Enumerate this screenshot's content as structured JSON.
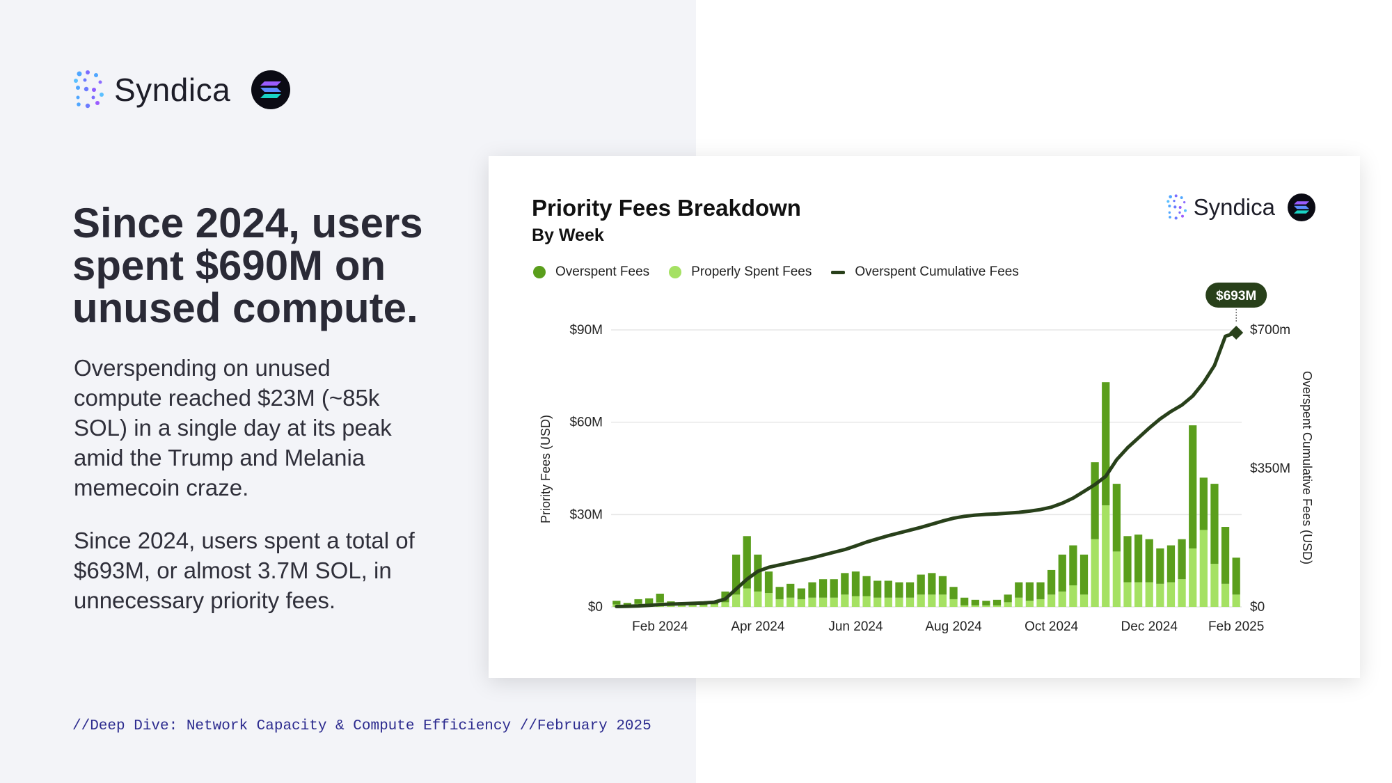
{
  "brand": {
    "name": "Syndica"
  },
  "headline": "Since 2024, users spent $690M on unused compute.",
  "paragraph1": "Overspending on unused compute reached $23M (~85k SOL) in a single day at its peak amid the Trump and Melania memecoin craze.",
  "paragraph2": "Since 2024, users spent a total of $693M, or almost 3.7M SOL, in unnecessary priority fees.",
  "footer": "//Deep Dive: Network Capacity & Compute Efficiency //February 2025",
  "colors": {
    "overspent": "#5a9e1c",
    "properly_spent": "#a5e163",
    "cumulative": "#28401a",
    "background": "#f3f4f8"
  },
  "chart_data": {
    "type": "bar",
    "title": "Priority Fees Breakdown",
    "subtitle": "By Week",
    "legend": [
      "Overspent Fees",
      "Properly Spent Fees",
      "Overspent Cumulative Fees"
    ],
    "legend_position": "top-left",
    "ylabel": "Priority Fees (USD)",
    "y2label": "Overspent Cumulative Fees (USD)",
    "ylim": [
      0,
      90
    ],
    "y2lim": [
      0,
      700
    ],
    "yticks": [
      "$0",
      "$30M",
      "$60M",
      "$90M"
    ],
    "y2ticks": [
      "$0",
      "$350M",
      "$700m"
    ],
    "xticks": [
      "Feb 2024",
      "Apr 2024",
      "Jun 2024",
      "Aug 2024",
      "Oct 2024",
      "Dec 2024",
      "Feb 2025"
    ],
    "grid": true,
    "annotation": {
      "label": "$693M"
    },
    "series": [
      {
        "name": "Overspent Fees",
        "values": [
          1.2,
          0.8,
          1.5,
          1.8,
          2.8,
          1.2,
          1,
          0.8,
          0.9,
          1.2,
          3.5,
          13,
          17,
          12,
          7,
          4,
          4.5,
          3.5,
          5,
          6,
          6,
          7,
          8,
          6.5,
          5.5,
          5.5,
          5,
          5,
          6.5,
          7,
          6,
          4,
          2.5,
          1.8,
          1.5,
          1.8,
          2.5,
          5,
          6,
          5.5,
          8,
          12,
          13,
          13,
          25,
          40,
          22,
          15,
          15.5,
          14,
          11.5,
          12,
          13,
          40,
          17,
          26,
          18.5,
          12
        ]
      },
      {
        "name": "Properly Spent Fees",
        "values": [
          0.8,
          0.5,
          1,
          1,
          1.5,
          0.6,
          0.5,
          0.5,
          0.5,
          0.8,
          1.5,
          4,
          6,
          5,
          4.5,
          2.5,
          3,
          2.5,
          3,
          3,
          3,
          4,
          3.5,
          3.5,
          3,
          3,
          3,
          3,
          4,
          4,
          4,
          2.5,
          0.5,
          0.5,
          0.5,
          0.5,
          1.5,
          3,
          2,
          2.5,
          4,
          5,
          7,
          4,
          22,
          33,
          18,
          8,
          8,
          8,
          7.5,
          8,
          9,
          19,
          25,
          14,
          7.5,
          4
        ]
      },
      {
        "name": "Overspent Cumulative Fees",
        "values": [
          1,
          1.5,
          2.5,
          4,
          6,
          7,
          8,
          9,
          10,
          12,
          20,
          45,
          70,
          90,
          100,
          106,
          112,
          118,
          124,
          131,
          138,
          145,
          154,
          164,
          172,
          180,
          187,
          194,
          201,
          209,
          217,
          224,
          229,
          232,
          234,
          235,
          237,
          239,
          242,
          246,
          252,
          262,
          275,
          292,
          309,
          330,
          372,
          402,
          427,
          452,
          475,
          494,
          510,
          533,
          567,
          610,
          684,
          693
        ]
      }
    ]
  }
}
